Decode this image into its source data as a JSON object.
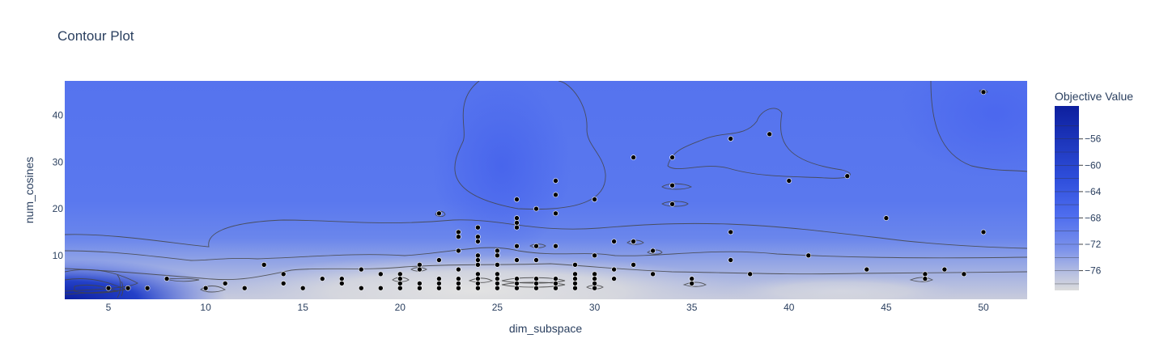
{
  "chart_data": {
    "type": "contour",
    "title": "Contour Plot",
    "xlabel": "dim_subspace",
    "ylabel": "num_cosines",
    "xlim": [
      2.75,
      52.25
    ],
    "ylim": [
      0.6,
      47.4
    ],
    "x_ticks": [
      5,
      10,
      15,
      20,
      25,
      30,
      35,
      40,
      45,
      50
    ],
    "y_ticks": [
      10,
      20,
      30,
      40
    ],
    "colorbar": {
      "title": "Objective Value",
      "range": [
        -79,
        -51
      ],
      "ticks": [
        -56,
        -60,
        -64,
        -68,
        -72,
        -76
      ],
      "colorscale": [
        "#0d1f9e",
        "#2e49d6",
        "#4b6cf0",
        "#6b88ef",
        "#a9b4e4",
        "#dcdcdc"
      ]
    },
    "points": [
      [
        5,
        3
      ],
      [
        6,
        3
      ],
      [
        7,
        3
      ],
      [
        8,
        5
      ],
      [
        10,
        3
      ],
      [
        11,
        4
      ],
      [
        12,
        3
      ],
      [
        13,
        8
      ],
      [
        14,
        6
      ],
      [
        14,
        4
      ],
      [
        15,
        3
      ],
      [
        16,
        5
      ],
      [
        17,
        5
      ],
      [
        17,
        4
      ],
      [
        18,
        7
      ],
      [
        18,
        3
      ],
      [
        19,
        6
      ],
      [
        19,
        3
      ],
      [
        20,
        6
      ],
      [
        20,
        5
      ],
      [
        20,
        4
      ],
      [
        20,
        3
      ],
      [
        21,
        8
      ],
      [
        21,
        7
      ],
      [
        21,
        4
      ],
      [
        21,
        3
      ],
      [
        22,
        19
      ],
      [
        22,
        9
      ],
      [
        22,
        5
      ],
      [
        22,
        4
      ],
      [
        22,
        3
      ],
      [
        23,
        15
      ],
      [
        23,
        14
      ],
      [
        23,
        11
      ],
      [
        23,
        7
      ],
      [
        23,
        5
      ],
      [
        23,
        4
      ],
      [
        23,
        3
      ],
      [
        24,
        16
      ],
      [
        24,
        14
      ],
      [
        24,
        13
      ],
      [
        24,
        10
      ],
      [
        24,
        9
      ],
      [
        24,
        8
      ],
      [
        24,
        6
      ],
      [
        24,
        5
      ],
      [
        24,
        4
      ],
      [
        24,
        3
      ],
      [
        25,
        11
      ],
      [
        25,
        10
      ],
      [
        25,
        8
      ],
      [
        25,
        6
      ],
      [
        25,
        5
      ],
      [
        25,
        4
      ],
      [
        25,
        3
      ],
      [
        26,
        22
      ],
      [
        26,
        18
      ],
      [
        26,
        17
      ],
      [
        26,
        16
      ],
      [
        26,
        12
      ],
      [
        26,
        9
      ],
      [
        26,
        5
      ],
      [
        26,
        4
      ],
      [
        26,
        3
      ],
      [
        27,
        20
      ],
      [
        27,
        12
      ],
      [
        27,
        9
      ],
      [
        27,
        5
      ],
      [
        27,
        4
      ],
      [
        27,
        3
      ],
      [
        28,
        26
      ],
      [
        28,
        23
      ],
      [
        28,
        19
      ],
      [
        28,
        12
      ],
      [
        28,
        5
      ],
      [
        28,
        4
      ],
      [
        28,
        3
      ],
      [
        29,
        8
      ],
      [
        29,
        6
      ],
      [
        29,
        5
      ],
      [
        29,
        4
      ],
      [
        29,
        3
      ],
      [
        30,
        22
      ],
      [
        30,
        10
      ],
      [
        30,
        6
      ],
      [
        30,
        5
      ],
      [
        30,
        4
      ],
      [
        30,
        3
      ],
      [
        31,
        13
      ],
      [
        31,
        7
      ],
      [
        31,
        5
      ],
      [
        32,
        31
      ],
      [
        32,
        13
      ],
      [
        32,
        8
      ],
      [
        33,
        11
      ],
      [
        33,
        6
      ],
      [
        34,
        31
      ],
      [
        34,
        25
      ],
      [
        34,
        21
      ],
      [
        35,
        5
      ],
      [
        35,
        4
      ],
      [
        37,
        35
      ],
      [
        37,
        15
      ],
      [
        37,
        9
      ],
      [
        38,
        6
      ],
      [
        39,
        36
      ],
      [
        40,
        26
      ],
      [
        41,
        10
      ],
      [
        43,
        27
      ],
      [
        44,
        7
      ],
      [
        45,
        18
      ],
      [
        47,
        6
      ],
      [
        47,
        5
      ],
      [
        48,
        7
      ],
      [
        49,
        6
      ],
      [
        50,
        45
      ],
      [
        50,
        15
      ]
    ]
  }
}
